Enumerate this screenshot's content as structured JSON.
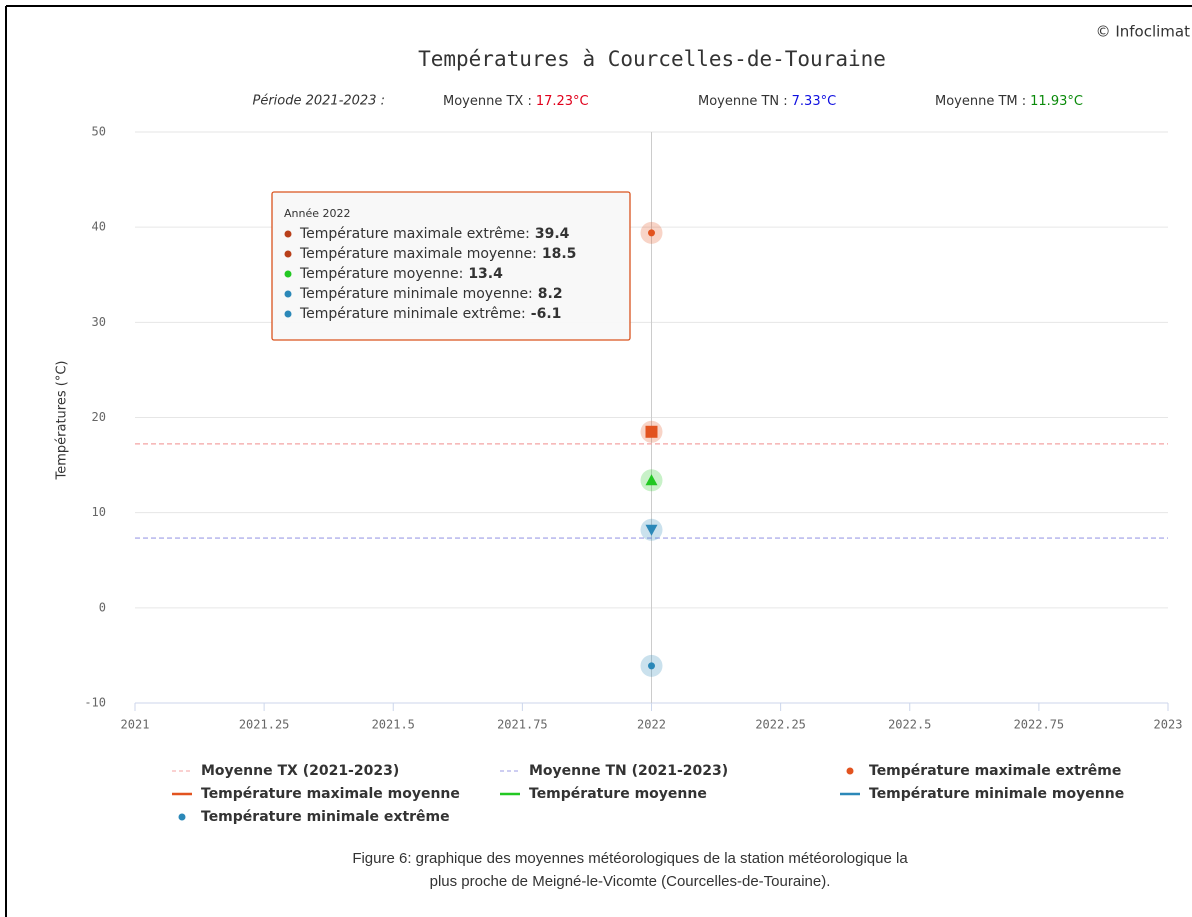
{
  "chart_data": {
    "type": "scatter",
    "title": "Températures à Courcelles-de-Touraine",
    "copyright": "© Infoclimat",
    "period": "Période 2021-2023 :",
    "stats": [
      {
        "label": "Moyenne TX :",
        "text": "17.23°C",
        "color": "#e0001b"
      },
      {
        "label": "Moyenne TN :",
        "text": "7.33°C",
        "color": "#1010e0"
      },
      {
        "label": "Moyenne TM :",
        "text": "11.93°C",
        "color": "#0a8a0a"
      }
    ],
    "y_label": "Températures (°C)",
    "xlim": [
      2021,
      2023
    ],
    "xticks": [
      2021,
      2021.25,
      2021.5,
      2021.75,
      2022,
      2022.25,
      2022.5,
      2022.75,
      2023
    ],
    "ylim": [
      -10,
      50
    ],
    "yticks": [
      -10,
      0,
      10,
      20,
      30,
      40,
      50
    ],
    "grid": true,
    "series": [
      {
        "name": "Moyenne TX (2021-2023)",
        "color": "#f4a3a3",
        "marker": "dash",
        "x": [
          2021,
          2023
        ],
        "values": [
          17.23,
          17.23
        ]
      },
      {
        "name": "Moyenne TN (2021-2023)",
        "color": "#9e9ee6",
        "marker": "dash",
        "x": [
          2021,
          2023
        ],
        "values": [
          7.33,
          7.33
        ]
      },
      {
        "name": "Température maximale extrême",
        "color": "#e2531f",
        "marker": "circle",
        "x": [
          2022
        ],
        "values": [
          39.4
        ]
      },
      {
        "name": "Température maximale moyenne",
        "color": "#e2531f",
        "marker": "square",
        "x": [
          2022
        ],
        "values": [
          18.5
        ]
      },
      {
        "name": "Température moyenne",
        "color": "#22c822",
        "marker": "triangle",
        "x": [
          2022
        ],
        "values": [
          13.4
        ]
      },
      {
        "name": "Température minimale moyenne",
        "color": "#2b88b8",
        "marker": "triangle-down",
        "x": [
          2022
        ],
        "values": [
          8.2
        ]
      },
      {
        "name": "Température minimale extrême",
        "color": "#2b88b8",
        "marker": "circle",
        "x": [
          2022
        ],
        "values": [
          -6.1
        ]
      }
    ],
    "tooltip": {
      "title": "Année 2022",
      "rows": [
        {
          "label": "Température maximale extrême:",
          "value": "39.4",
          "color": "#b8401a"
        },
        {
          "label": "Température maximale moyenne:",
          "value": "18.5",
          "color": "#b8401a"
        },
        {
          "label": "Température moyenne:",
          "value": "13.4",
          "color": "#22c822"
        },
        {
          "label": "Température minimale moyenne:",
          "value": "8.2",
          "color": "#2b88b8"
        },
        {
          "label": "Température minimale extrême:",
          "value": "-6.1",
          "color": "#2b88b8"
        }
      ]
    },
    "caption": [
      "Figure 6: graphique des moyennes météorologiques de la station météorologique la",
      "plus proche de Meigné-le-Vicomte (Courcelles-de-Touraine)."
    ]
  }
}
